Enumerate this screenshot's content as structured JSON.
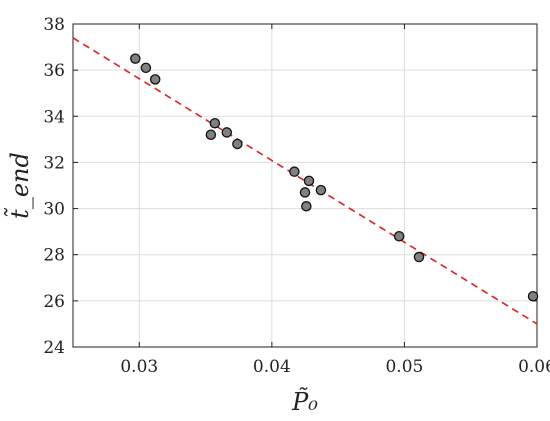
{
  "chart_data": {
    "type": "scatter",
    "title": "",
    "xlabel": "P̃₀",
    "ylabel": "t̃_end",
    "xlim": [
      0.025,
      0.06
    ],
    "ylim": [
      24,
      38
    ],
    "xticks": [
      0.03,
      0.04,
      0.05,
      0.06
    ],
    "xtick_labels": [
      "0.03",
      "0.04",
      "0.05",
      "0.06"
    ],
    "yticks": [
      24,
      26,
      28,
      30,
      32,
      34,
      36,
      38
    ],
    "ytick_labels": [
      "24",
      "26",
      "28",
      "30",
      "32",
      "34",
      "36",
      "38"
    ],
    "grid": true,
    "series": [
      {
        "kind": "points",
        "marker_color": "#808080",
        "x": [
          0.0297,
          0.0305,
          0.0312,
          0.0354,
          0.0357,
          0.0366,
          0.0374,
          0.0417,
          0.0425,
          0.0426,
          0.0428,
          0.0437,
          0.0496,
          0.0511,
          0.0597
        ],
        "y": [
          36.5,
          36.1,
          35.6,
          33.2,
          33.7,
          33.3,
          32.8,
          31.6,
          30.7,
          30.1,
          31.2,
          30.8,
          28.8,
          27.9,
          26.2
        ]
      },
      {
        "kind": "fit-line",
        "line_style": "dashed",
        "color": "#dd2020",
        "x": [
          0.025,
          0.06
        ],
        "y": [
          37.4,
          25.0
        ]
      }
    ]
  }
}
